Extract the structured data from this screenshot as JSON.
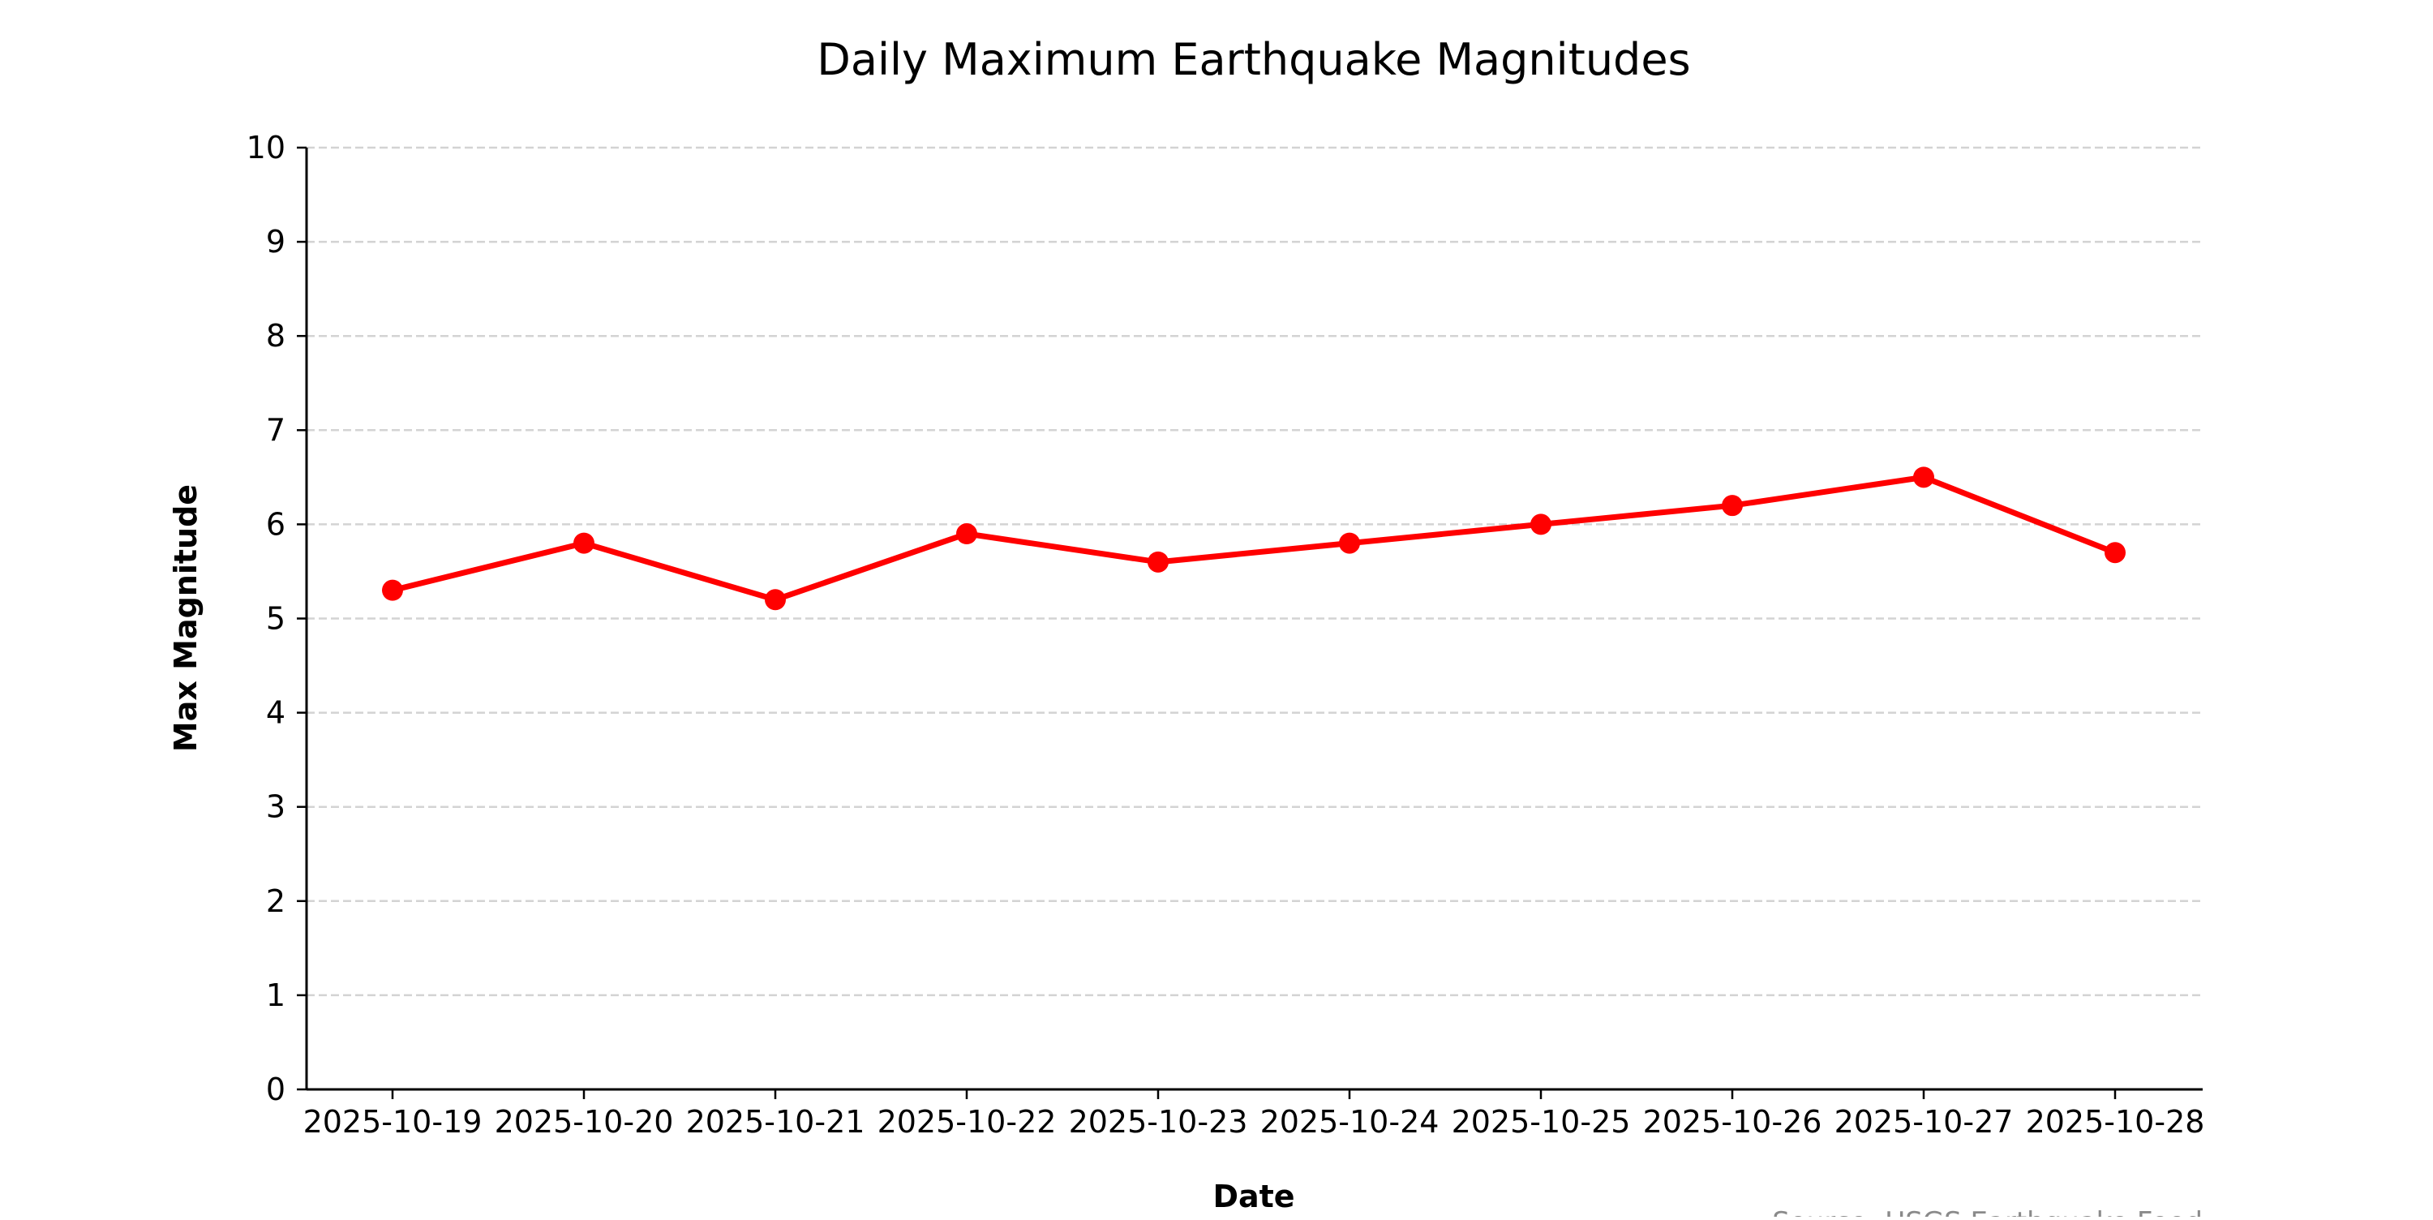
{
  "chart_data": {
    "type": "line",
    "title": "Daily Maximum Earthquake Magnitudes",
    "xlabel": "Date",
    "ylabel": "Max Magnitude",
    "source_note": "Source: USGS Earthquake Feed",
    "categories": [
      "2025-10-19",
      "2025-10-20",
      "2025-10-21",
      "2025-10-22",
      "2025-10-23",
      "2025-10-24",
      "2025-10-25",
      "2025-10-26",
      "2025-10-27",
      "2025-10-28"
    ],
    "series": [
      {
        "values": [
          5.3,
          5.8,
          5.2,
          5.9,
          5.6,
          5.8,
          6.0,
          6.2,
          6.5,
          5.7
        ],
        "color": "#ff0000",
        "marker": "circle"
      }
    ],
    "ylim": [
      0,
      10
    ],
    "yticks": [
      0,
      1,
      2,
      3,
      4,
      5,
      6,
      7,
      8,
      9,
      10
    ],
    "grid": "y-dashed",
    "gridline_color": "#d3d3d3",
    "legend": "none"
  }
}
